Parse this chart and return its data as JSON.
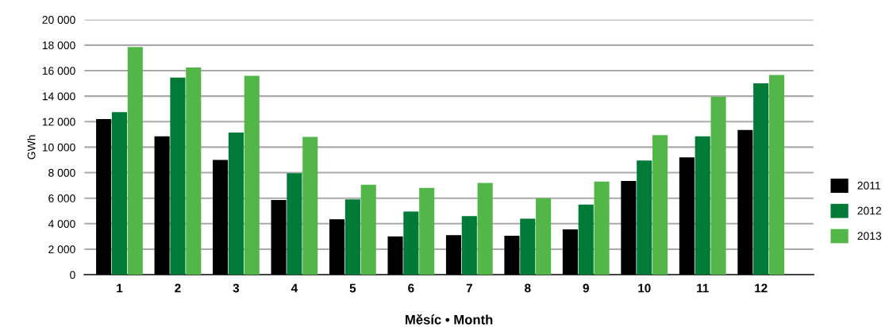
{
  "chart_data": {
    "type": "bar",
    "xlabel": "Měsíc • Month",
    "ylabel": "GWh",
    "categories": [
      "1",
      "2",
      "3",
      "4",
      "5",
      "6",
      "7",
      "8",
      "9",
      "10",
      "11",
      "12"
    ],
    "series": [
      {
        "name": "2011",
        "color": "#000000",
        "values": [
          12200,
          10850,
          9000,
          5850,
          4350,
          3000,
          3100,
          3050,
          3550,
          7350,
          9200,
          11350
        ]
      },
      {
        "name": "2012",
        "color": "#007a37",
        "values": [
          12750,
          15450,
          11150,
          7950,
          5900,
          4950,
          4600,
          4400,
          5500,
          8950,
          10850,
          15000
        ]
      },
      {
        "name": "2013",
        "color": "#52b748",
        "values": [
          17850,
          16250,
          15600,
          10800,
          7050,
          6800,
          7200,
          6000,
          7300,
          10950,
          13950,
          15650
        ]
      }
    ],
    "ylim": [
      0,
      20000
    ],
    "yticks": [
      0,
      {
        "value": 2000,
        "label": "2 000"
      },
      {
        "value": 4000,
        "label": "4 000"
      },
      {
        "value": 6000,
        "label": "6 000"
      },
      {
        "value": 8000,
        "label": "8 000"
      },
      {
        "value": 10000,
        "label": "10 000"
      },
      {
        "value": 12000,
        "label": "12 000"
      },
      {
        "value": 14000,
        "label": "14 000"
      },
      {
        "value": 16000,
        "label": "16 000"
      },
      {
        "value": 18000,
        "label": "18 000"
      },
      {
        "value": 20000,
        "label": "20 000"
      }
    ],
    "grid": "y",
    "legend": "right"
  }
}
